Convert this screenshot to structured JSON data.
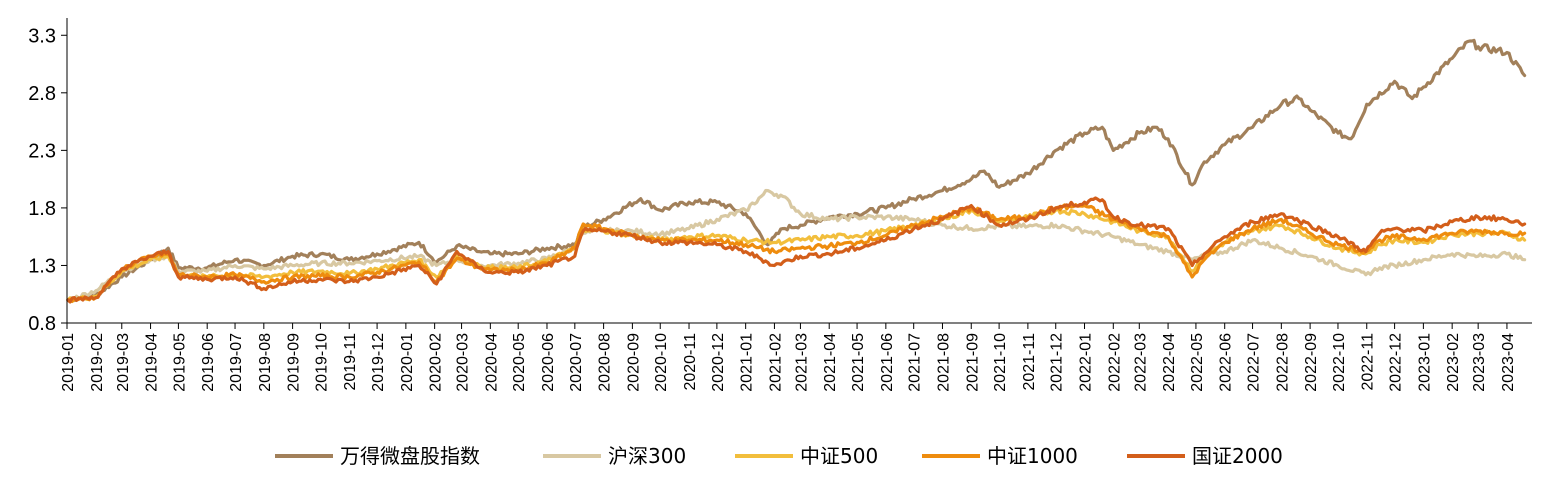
{
  "chart_data": {
    "type": "line",
    "title": "",
    "xlabel": "",
    "ylabel": "",
    "ylim": [
      0.8,
      3.45
    ],
    "yticks": [
      0.8,
      1.3,
      1.8,
      2.3,
      2.8,
      3.3
    ],
    "ytick_labels": [
      "0.8",
      "1.3",
      "1.8",
      "2.3",
      "2.8",
      "3.3"
    ],
    "xticks": [
      "2019-01",
      "2019-02",
      "2019-03",
      "2019-04",
      "2019-05",
      "2019-06",
      "2019-07",
      "2019-08",
      "2019-09",
      "2019-10",
      "2019-11",
      "2019-12",
      "2020-01",
      "2020-02",
      "2020-03",
      "2020-04",
      "2020-05",
      "2020-06",
      "2020-07",
      "2020-08",
      "2020-09",
      "2020-10",
      "2020-11",
      "2020-12",
      "2021-01",
      "2021-02",
      "2021-03",
      "2021-04",
      "2021-05",
      "2021-06",
      "2021-07",
      "2021-08",
      "2021-09",
      "2021-10",
      "2021-11",
      "2021-12",
      "2022-01",
      "2022-02",
      "2022-03",
      "2022-04",
      "2022-05",
      "2022-06",
      "2022-07",
      "2022-08",
      "2022-09",
      "2022-10",
      "2022-11",
      "2022-12",
      "2023-01",
      "2023-02",
      "2023-03",
      "2023-04"
    ],
    "legend_position": "bottom",
    "grid": false,
    "series": [
      {
        "name": "万得微盘股指数",
        "color": "#A2805A",
        "x": [
          "2019-01-02",
          "2019-02-01",
          "2019-03-01",
          "2019-04-01",
          "2019-04-20",
          "2019-05-01",
          "2019-06-01",
          "2019-07-01",
          "2019-08-01",
          "2019-09-01",
          "2019-10-01",
          "2019-11-01",
          "2019-12-01",
          "2020-01-15",
          "2020-02-03",
          "2020-02-25",
          "2020-03-20",
          "2020-04-01",
          "2020-05-01",
          "2020-06-01",
          "2020-07-01",
          "2020-07-10",
          "2020-08-01",
          "2020-09-10",
          "2020-10-01",
          "2020-11-01",
          "2020-12-01",
          "2021-01-01",
          "2021-01-25",
          "2021-02-10",
          "2021-03-01",
          "2021-04-01",
          "2021-05-01",
          "2021-06-01",
          "2021-07-01",
          "2021-08-01",
          "2021-09-01",
          "2021-09-15",
          "2021-10-01",
          "2021-11-01",
          "2021-12-01",
          "2022-01-01",
          "2022-01-20",
          "2022-02-01",
          "2022-03-01",
          "2022-03-20",
          "2022-04-01",
          "2022-04-27",
          "2022-05-10",
          "2022-06-01",
          "2022-07-01",
          "2022-08-01",
          "2022-08-20",
          "2022-09-01",
          "2022-10-01",
          "2022-10-15",
          "2022-11-01",
          "2022-12-01",
          "2022-12-20",
          "2023-01-01",
          "2023-02-01",
          "2023-02-20",
          "2023-03-01",
          "2023-04-01",
          "2023-04-20"
        ],
        "values": [
          1.0,
          1.04,
          1.2,
          1.35,
          1.45,
          1.28,
          1.28,
          1.35,
          1.3,
          1.38,
          1.4,
          1.35,
          1.4,
          1.5,
          1.33,
          1.47,
          1.42,
          1.4,
          1.4,
          1.45,
          1.48,
          1.63,
          1.7,
          1.88,
          1.78,
          1.85,
          1.85,
          1.75,
          1.48,
          1.62,
          1.65,
          1.72,
          1.75,
          1.8,
          1.88,
          1.95,
          2.05,
          2.12,
          1.98,
          2.1,
          2.3,
          2.45,
          2.5,
          2.3,
          2.45,
          2.5,
          2.4,
          2.0,
          2.2,
          2.35,
          2.5,
          2.7,
          2.75,
          2.65,
          2.45,
          2.4,
          2.7,
          2.9,
          2.75,
          2.85,
          3.1,
          3.25,
          3.2,
          3.15,
          2.95
        ]
      },
      {
        "name": "沪深300",
        "color": "#D8C8A2",
        "x": [
          "2019-01-02",
          "2019-02-01",
          "2019-03-01",
          "2019-04-01",
          "2019-04-20",
          "2019-05-01",
          "2019-06-01",
          "2019-07-01",
          "2019-08-01",
          "2019-09-01",
          "2019-10-01",
          "2019-11-01",
          "2019-12-01",
          "2020-01-15",
          "2020-02-03",
          "2020-02-25",
          "2020-03-20",
          "2020-04-01",
          "2020-05-01",
          "2020-06-01",
          "2020-07-01",
          "2020-07-10",
          "2020-08-01",
          "2020-09-01",
          "2020-10-01",
          "2020-11-01",
          "2020-12-01",
          "2021-01-01",
          "2021-01-25",
          "2021-02-10",
          "2021-03-01",
          "2021-04-01",
          "2021-05-01",
          "2021-06-01",
          "2021-07-01",
          "2021-08-01",
          "2021-09-01",
          "2021-10-01",
          "2021-11-01",
          "2021-12-01",
          "2022-01-01",
          "2022-02-01",
          "2022-03-01",
          "2022-04-01",
          "2022-04-27",
          "2022-05-10",
          "2022-06-01",
          "2022-07-01",
          "2022-08-01",
          "2022-09-01",
          "2022-10-01",
          "2022-10-31",
          "2022-11-15",
          "2022-12-01",
          "2023-01-01",
          "2023-02-01",
          "2023-03-01",
          "2023-04-01",
          "2023-04-20"
        ],
        "values": [
          1.0,
          1.08,
          1.25,
          1.35,
          1.38,
          1.25,
          1.25,
          1.3,
          1.27,
          1.3,
          1.32,
          1.32,
          1.34,
          1.38,
          1.3,
          1.35,
          1.3,
          1.3,
          1.32,
          1.36,
          1.45,
          1.58,
          1.6,
          1.6,
          1.57,
          1.62,
          1.7,
          1.78,
          1.95,
          1.9,
          1.75,
          1.7,
          1.72,
          1.72,
          1.7,
          1.65,
          1.62,
          1.64,
          1.64,
          1.65,
          1.6,
          1.55,
          1.48,
          1.42,
          1.35,
          1.38,
          1.42,
          1.52,
          1.45,
          1.38,
          1.3,
          1.22,
          1.28,
          1.3,
          1.35,
          1.4,
          1.38,
          1.4,
          1.35
        ]
      },
      {
        "name": "中证500",
        "color": "#F2BE3C",
        "x": [
          "2019-01-02",
          "2019-02-01",
          "2019-03-01",
          "2019-04-01",
          "2019-04-20",
          "2019-05-01",
          "2019-06-01",
          "2019-07-01",
          "2019-08-01",
          "2019-09-01",
          "2019-10-01",
          "2019-11-01",
          "2019-12-01",
          "2020-01-15",
          "2020-02-03",
          "2020-02-25",
          "2020-03-20",
          "2020-04-01",
          "2020-05-01",
          "2020-06-01",
          "2020-07-01",
          "2020-07-10",
          "2020-08-01",
          "2020-09-01",
          "2020-10-01",
          "2020-11-01",
          "2020-12-01",
          "2021-01-01",
          "2021-02-01",
          "2021-03-01",
          "2021-04-01",
          "2021-05-01",
          "2021-06-01",
          "2021-07-01",
          "2021-08-01",
          "2021-09-01",
          "2021-10-01",
          "2021-11-01",
          "2021-12-01",
          "2022-01-01",
          "2022-02-01",
          "2022-03-01",
          "2022-04-01",
          "2022-04-27",
          "2022-05-10",
          "2022-06-01",
          "2022-07-01",
          "2022-08-01",
          "2022-09-01",
          "2022-10-01",
          "2022-10-31",
          "2022-11-15",
          "2022-12-01",
          "2023-01-01",
          "2023-02-01",
          "2023-03-01",
          "2023-04-01",
          "2023-04-20"
        ],
        "values": [
          1.0,
          1.03,
          1.25,
          1.35,
          1.38,
          1.22,
          1.2,
          1.22,
          1.2,
          1.24,
          1.25,
          1.23,
          1.27,
          1.35,
          1.2,
          1.38,
          1.3,
          1.28,
          1.28,
          1.34,
          1.45,
          1.62,
          1.6,
          1.56,
          1.52,
          1.55,
          1.56,
          1.52,
          1.5,
          1.52,
          1.55,
          1.56,
          1.6,
          1.65,
          1.7,
          1.78,
          1.68,
          1.72,
          1.78,
          1.75,
          1.68,
          1.6,
          1.55,
          1.25,
          1.38,
          1.5,
          1.6,
          1.65,
          1.55,
          1.45,
          1.4,
          1.48,
          1.52,
          1.5,
          1.57,
          1.58,
          1.58,
          1.52
        ]
      },
      {
        "name": "中证1000",
        "color": "#EE8C0E",
        "x": [
          "2019-01-02",
          "2019-02-01",
          "2019-03-01",
          "2019-04-01",
          "2019-04-20",
          "2019-05-01",
          "2019-06-01",
          "2019-07-01",
          "2019-08-01",
          "2019-09-01",
          "2019-10-01",
          "2019-11-01",
          "2019-12-01",
          "2020-01-15",
          "2020-02-03",
          "2020-02-25",
          "2020-03-20",
          "2020-04-01",
          "2020-05-01",
          "2020-06-01",
          "2020-07-01",
          "2020-07-10",
          "2020-08-01",
          "2020-09-01",
          "2020-10-01",
          "2020-11-01",
          "2020-12-01",
          "2021-01-01",
          "2021-02-01",
          "2021-03-01",
          "2021-04-01",
          "2021-05-01",
          "2021-06-01",
          "2021-07-01",
          "2021-08-01",
          "2021-09-01",
          "2021-10-01",
          "2021-11-01",
          "2021-12-01",
          "2022-01-01",
          "2022-02-01",
          "2022-03-01",
          "2022-04-01",
          "2022-04-27",
          "2022-05-10",
          "2022-06-01",
          "2022-07-01",
          "2022-08-01",
          "2022-09-01",
          "2022-10-01",
          "2022-10-31",
          "2022-11-15",
          "2022-12-01",
          "2023-01-01",
          "2023-02-01",
          "2023-03-01",
          "2023-04-01",
          "2023-04-20"
        ],
        "values": [
          1.0,
          1.02,
          1.27,
          1.38,
          1.4,
          1.22,
          1.2,
          1.22,
          1.16,
          1.2,
          1.21,
          1.2,
          1.24,
          1.33,
          1.16,
          1.36,
          1.28,
          1.26,
          1.26,
          1.32,
          1.45,
          1.66,
          1.62,
          1.56,
          1.52,
          1.52,
          1.52,
          1.48,
          1.42,
          1.45,
          1.47,
          1.5,
          1.56,
          1.65,
          1.72,
          1.8,
          1.7,
          1.72,
          1.8,
          1.82,
          1.7,
          1.62,
          1.55,
          1.2,
          1.35,
          1.5,
          1.62,
          1.7,
          1.58,
          1.48,
          1.42,
          1.52,
          1.55,
          1.53,
          1.58,
          1.6,
          1.58,
          1.58
        ]
      },
      {
        "name": "国证2000",
        "color": "#D35E1A",
        "x": [
          "2019-01-02",
          "2019-02-01",
          "2019-03-01",
          "2019-04-01",
          "2019-04-20",
          "2019-05-01",
          "2019-06-01",
          "2019-07-01",
          "2019-08-01",
          "2019-09-01",
          "2019-10-01",
          "2019-11-01",
          "2019-12-01",
          "2020-01-15",
          "2020-02-03",
          "2020-02-25",
          "2020-03-20",
          "2020-04-01",
          "2020-05-01",
          "2020-06-01",
          "2020-07-01",
          "2020-07-10",
          "2020-08-01",
          "2020-09-01",
          "2020-10-01",
          "2020-11-01",
          "2020-12-01",
          "2021-01-01",
          "2021-02-01",
          "2021-03-01",
          "2021-04-01",
          "2021-05-01",
          "2021-06-01",
          "2021-07-01",
          "2021-08-01",
          "2021-09-01",
          "2021-10-01",
          "2021-11-01",
          "2021-12-01",
          "2022-01-01",
          "2022-01-20",
          "2022-02-01",
          "2022-03-01",
          "2022-04-01",
          "2022-04-27",
          "2022-05-10",
          "2022-06-01",
          "2022-07-01",
          "2022-08-01",
          "2022-09-01",
          "2022-10-01",
          "2022-10-31",
          "2022-11-15",
          "2022-12-01",
          "2023-01-01",
          "2023-02-01",
          "2023-03-01",
          "2023-04-01",
          "2023-04-20"
        ],
        "values": [
          1.0,
          1.02,
          1.27,
          1.38,
          1.42,
          1.2,
          1.18,
          1.2,
          1.1,
          1.16,
          1.18,
          1.16,
          1.2,
          1.3,
          1.14,
          1.42,
          1.28,
          1.24,
          1.24,
          1.3,
          1.38,
          1.6,
          1.6,
          1.56,
          1.5,
          1.5,
          1.48,
          1.42,
          1.3,
          1.38,
          1.4,
          1.45,
          1.52,
          1.62,
          1.7,
          1.82,
          1.65,
          1.7,
          1.8,
          1.85,
          1.87,
          1.72,
          1.65,
          1.62,
          1.3,
          1.4,
          1.55,
          1.68,
          1.75,
          1.65,
          1.55,
          1.42,
          1.58,
          1.62,
          1.6,
          1.68,
          1.72,
          1.7,
          1.66
        ]
      }
    ]
  }
}
